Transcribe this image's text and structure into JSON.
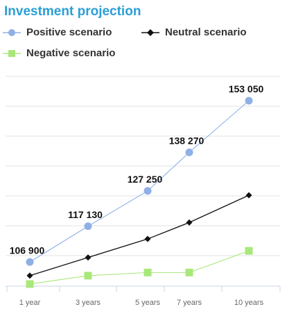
{
  "chart_data": {
    "type": "line",
    "title": "Investment projection",
    "categories": [
      "1 year",
      "3 years",
      "5 years",
      "7 years",
      "10 years"
    ],
    "ylim": [
      100000,
      160000
    ],
    "grid": true,
    "legend_position": "top-left",
    "series": [
      {
        "name": "Positive scenario",
        "color": "#8fb0e6",
        "marker": "circle",
        "values": [
          106900,
          117130,
          127250,
          138270,
          153050
        ],
        "labels": [
          "106 900",
          "117 130",
          "127 250",
          "138 270",
          "153 050"
        ]
      },
      {
        "name": "Neutral scenario",
        "color": "#111111",
        "marker": "diamond",
        "values": [
          103000,
          108200,
          113500,
          118200,
          126000
        ]
      },
      {
        "name": "Negative scenario",
        "color": "#a8e87a",
        "marker": "square",
        "values": [
          100600,
          103000,
          103900,
          103900,
          110100
        ]
      }
    ]
  }
}
